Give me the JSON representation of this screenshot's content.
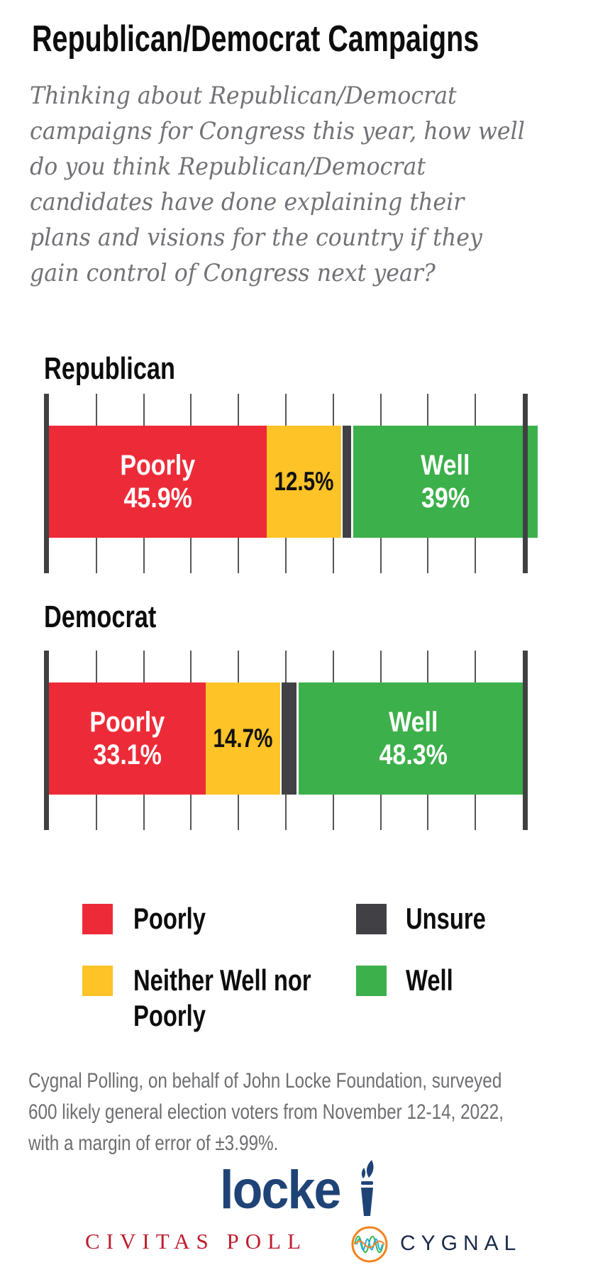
{
  "title": "Republican/Democrat Campaigns",
  "question_lines": [
    "Thinking about Republican/Democrat",
    "campaigns for Congress this year, how well",
    "do you think Republican/Democrat",
    "candidates have done explaining their",
    "plans and visions for the country if they",
    "gain control of Congress next year?"
  ],
  "charts": [
    {
      "label": "Republican",
      "segments": [
        {
          "name": "Poorly",
          "value": 45.9,
          "color": "#ED2B38",
          "text_color": "#FFFFFF",
          "lines": [
            "Poorly",
            "45.9%"
          ]
        },
        {
          "name": "Neither Well nor Poorly",
          "value": 12.5,
          "color": "#FDC327",
          "text_color": "#111111",
          "lines": [
            "12.5%"
          ]
        },
        {
          "name": "Unsure",
          "value": 2.6,
          "color": "#414045",
          "lines": []
        },
        {
          "name": "Well",
          "value": 39,
          "color": "#3CB04A",
          "text_color": "#FFFFFF",
          "lines": [
            "Well",
            "39%"
          ]
        }
      ]
    },
    {
      "label": "Democrat",
      "segments": [
        {
          "name": "Poorly",
          "value": 33.1,
          "color": "#ED2B38",
          "text_color": "#FFFFFF",
          "lines": [
            "Poorly",
            "33.1%"
          ]
        },
        {
          "name": "Neither Well nor Poorly",
          "value": 14.7,
          "color": "#FDC327",
          "text_color": "#111111",
          "lines": [
            "14.7%"
          ]
        },
        {
          "name": "Unsure",
          "value": 3.9,
          "color": "#414045",
          "lines": []
        },
        {
          "name": "Well",
          "value": 48.3,
          "color": "#3CB04A",
          "text_color": "#FFFFFF",
          "lines": [
            "Well",
            "48.3%"
          ]
        }
      ]
    }
  ],
  "chart_data": {
    "type": "bar",
    "orientation": "horizontal",
    "stacked": true,
    "title": "Republican/Democrat Campaigns",
    "subtitle": "Thinking about Republican/Democrat campaigns for Congress this year, how well do you think Republican/Democrat candidates have done explaining their plans and visions for the country if they gain control of Congress next year?",
    "categories": [
      "Republican",
      "Democrat"
    ],
    "series": [
      {
        "name": "Poorly",
        "color": "#ED2B38",
        "values": [
          45.9,
          33.1
        ]
      },
      {
        "name": "Neither Well nor Poorly",
        "color": "#FDC327",
        "values": [
          12.5,
          14.7
        ]
      },
      {
        "name": "Unsure",
        "color": "#414045",
        "values": [
          2.6,
          3.9
        ]
      },
      {
        "name": "Well",
        "color": "#3CB04A",
        "values": [
          39,
          48.3
        ]
      }
    ],
    "xlim": [
      0,
      100
    ],
    "tick_interval": 10,
    "grid": "ticks above and below each bar, heavy end caps at 0 and 100",
    "legend_position": "bottom"
  },
  "legend": {
    "items": [
      {
        "label": "Poorly",
        "lines": [
          "Poorly"
        ],
        "color": "#ED2B38"
      },
      {
        "label": "Unsure",
        "lines": [
          "Unsure"
        ],
        "color": "#414045"
      },
      {
        "label": "Neither Well nor Poorly",
        "lines": [
          "Neither Well nor",
          "Poorly"
        ],
        "color": "#FDC327"
      },
      {
        "label": "Well",
        "lines": [
          "Well"
        ],
        "color": "#3CB04A"
      }
    ]
  },
  "footer_lines": [
    "Cygnal Polling, on behalf of John Locke Foundation, surveyed",
    "600 likely general election voters from November 12-14, 2022,",
    "with a margin of error of ±3.99%."
  ],
  "branding": {
    "locke": "locke",
    "civitas": "CIVITAS POLL",
    "cygnal": "CYGNAL",
    "locke_blue": "#1F4377",
    "civitas_red": "#BE1E2D",
    "cygnal_navy": "#1B2A4A",
    "cygnal_orange": "#F5821F",
    "cygnal_green": "#3BB54A",
    "cygnal_cyan": "#29ABE2"
  },
  "colors": {
    "poorly": "#ED2B38",
    "neither_well_nor_poorly": "#FDC327",
    "unsure": "#414045",
    "well": "#3CB04A",
    "axis_caps": "#414042",
    "ticks": "#55565A",
    "question_text": "#717276",
    "footer_text": "#6D6E71"
  }
}
